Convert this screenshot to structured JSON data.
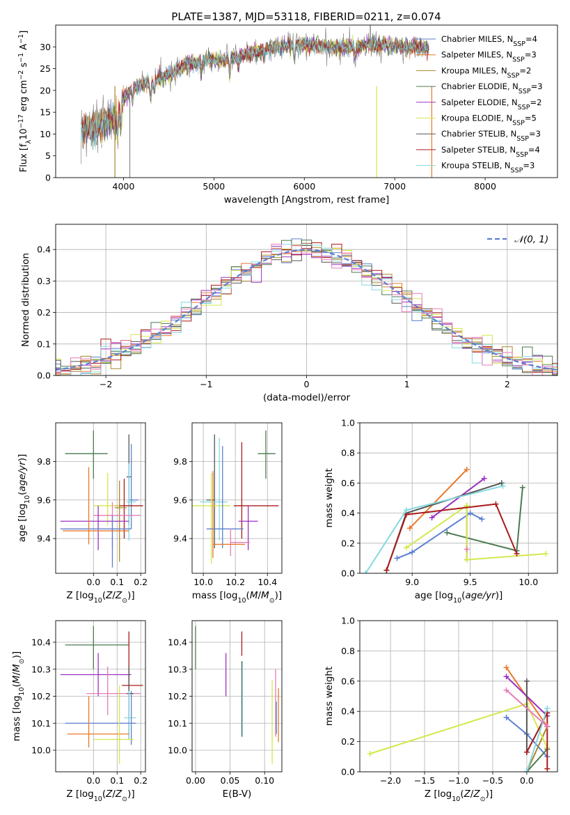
{
  "figure_title": "PLATE=1387, MJD=53118, FIBERID=0211, z=0.074",
  "series_styles": [
    {
      "name": "Chabrier MILES",
      "nssp": "4",
      "color": "#5b7fd1"
    },
    {
      "name": "Salpeter MILES",
      "nssp": "3",
      "color": "#e8782a"
    },
    {
      "name": "Kroupa MILES",
      "nssp": "2",
      "color": "#a8882a"
    },
    {
      "name": "Chabrier ELODIE",
      "nssp": "3",
      "color": "#4a7a50"
    },
    {
      "name": "Salpeter ELODIE",
      "nssp": "2",
      "color": "#9b30c0"
    },
    {
      "name": "Kroupa ELODIE",
      "nssp": "5",
      "color": "#d4e84a"
    },
    {
      "name": "Chabrier STELIB",
      "nssp": "3",
      "color": "#555555"
    },
    {
      "name": "Salpeter STELIB",
      "nssp": "4",
      "color": "#aa1a1a"
    },
    {
      "name": "Kroupa STELIB",
      "nssp": "3",
      "color": "#84d8e0"
    }
  ],
  "extra_colors": {
    "pink": "#e87ab8",
    "observed": "#888888",
    "gaussian": "#5b7fd1"
  },
  "chart_data": [
    {
      "id": "spectrum",
      "type": "line",
      "title": "PLATE=1387, MJD=53118, FIBERID=0211, z=0.074",
      "xlabel": "wavelength [Angstrom, rest frame]",
      "ylabel": "Flux [f_λ 10^-17 erg cm^-2 s^-1 A^-1]",
      "xlim": [
        3250,
        8800
      ],
      "ylim": [
        0,
        35
      ],
      "xticks": [
        4000,
        5000,
        6000,
        7000,
        8000
      ],
      "yticks": [
        0,
        5,
        10,
        15,
        20,
        25,
        30
      ],
      "continuum": {
        "x": [
          3530,
          3700,
          3900,
          4000,
          4100,
          4300,
          4500,
          4700,
          4900,
          5100,
          5300,
          5500,
          5700,
          5900,
          6100,
          6300,
          6500,
          6700,
          6900,
          7100,
          7300,
          7380
        ],
        "y": [
          11,
          11.5,
          14,
          18,
          20.5,
          22,
          23.5,
          26,
          27,
          27,
          28,
          29,
          30,
          30.5,
          30.5,
          30,
          30,
          30.5,
          30.5,
          30,
          30,
          29.5
        ]
      },
      "legend_position": "upper right"
    },
    {
      "id": "residuals",
      "type": "histogram",
      "xlabel": "(data-model)/error",
      "ylabel": "Normed distribution",
      "xlim": [
        -2.5,
        2.5
      ],
      "ylim": [
        0,
        0.48
      ],
      "xticks": [
        -2,
        -1,
        0,
        1,
        2
      ],
      "yticks": [
        0,
        0.1,
        0.2,
        0.3,
        0.4
      ],
      "bin_width": 0.1,
      "model_label": "𝒩(0, 1)",
      "model": {
        "mean": 0,
        "sigma": 1
      },
      "grid": true,
      "legend_position": "upper right"
    },
    {
      "id": "age_vs_Z",
      "type": "errorbar",
      "xlabel": "Z [log10(Z/Z☉)]",
      "ylabel": "age [log10(age/yr)]",
      "xlim": [
        -0.16,
        0.22
      ],
      "ylim": [
        9.22,
        10.0
      ],
      "xticks": [
        0.0,
        0.1,
        0.2
      ],
      "yticks": [
        9.4,
        9.6,
        9.8
      ],
      "grid": true,
      "points": [
        {
          "c": "#4a7a50",
          "x": 0.0,
          "y": 9.84,
          "xe": [
            0.12,
            0.06
          ],
          "ye": [
            0.13,
            0.12
          ]
        },
        {
          "c": "#555555",
          "x": 0.15,
          "y": 9.72,
          "xe": [
            0.01,
            0.01
          ],
          "ye": [
            0.25,
            0.22
          ]
        },
        {
          "c": "#5b7fd1",
          "x": 0.16,
          "y": 9.6,
          "xe": [
            0.01,
            0.03
          ],
          "ye": [
            0.15,
            0.29
          ]
        },
        {
          "c": "#84d8e0",
          "x": 0.15,
          "y": 9.59,
          "xe": [
            0.01,
            0.03
          ],
          "ye": [
            0.2,
            0.2
          ]
        },
        {
          "c": "#aa1a1a",
          "x": 0.13,
          "y": 9.57,
          "xe": [
            0.04,
            0.08
          ],
          "ye": [
            0.17,
            0.14
          ]
        },
        {
          "c": "#d4e84a",
          "x": 0.06,
          "y": 9.57,
          "xe": [
            0.06,
            0.05
          ],
          "ye": [
            0.1,
            0.17
          ]
        },
        {
          "c": "#a8882a",
          "x": 0.11,
          "y": 9.56,
          "xe": [
            0.02,
            0.03
          ],
          "ye": [
            0.28,
            0.14
          ]
        },
        {
          "c": "#e87ab8",
          "x": 0.08,
          "y": 9.52,
          "xe": [
            0.08,
            0.12
          ],
          "ye": [
            0.17,
            0.07
          ]
        },
        {
          "c": "#9b30c0",
          "x": 0.02,
          "y": 9.49,
          "xe": [
            0.16,
            0.13
          ],
          "ye": [
            0.15,
            0.08
          ]
        },
        {
          "c": "#5b7fd1",
          "x": 0.08,
          "y": 9.45,
          "xe": [
            0.22,
            0.08
          ],
          "ye": [
            0.2,
            0.07
          ]
        },
        {
          "c": "#e8782a",
          "x": -0.02,
          "y": 9.44,
          "xe": [
            0.11,
            0.17
          ],
          "ye": [
            0.07,
            0.33
          ]
        }
      ]
    },
    {
      "id": "age_vs_mass",
      "type": "errorbar",
      "xlabel": "mass [log10(M/M☉)]",
      "ylabel": "",
      "xlim": [
        9.93,
        10.49
      ],
      "ylim": [
        9.22,
        10.0
      ],
      "xticks": [
        10.0,
        10.2,
        10.4
      ],
      "yticks": [
        9.4,
        9.6,
        9.8
      ],
      "grid": true,
      "points": [
        {
          "c": "#4a7a50",
          "x": 10.39,
          "y": 9.84,
          "xe": [
            0.05,
            0.06
          ],
          "ye": [
            0.13,
            0.12
          ]
        },
        {
          "c": "#555555",
          "x": 10.07,
          "y": 9.6,
          "xe": [
            0.05,
            0.0
          ],
          "ye": [
            0.25,
            0.34
          ]
        },
        {
          "c": "#84d8e0",
          "x": 10.1,
          "y": 9.59,
          "xe": [
            0.12,
            0.05
          ],
          "ye": [
            0.2,
            0.33
          ]
        },
        {
          "c": "#aa1a1a",
          "x": 10.24,
          "y": 9.57,
          "xe": [
            0.05,
            0.23
          ],
          "ye": [
            0.17,
            0.33
          ]
        },
        {
          "c": "#d4e84a",
          "x": 10.05,
          "y": 9.57,
          "xe": [
            0.12,
            0.12
          ],
          "ye": [
            0.3,
            0.17
          ]
        },
        {
          "c": "#9b30c0",
          "x": 10.28,
          "y": 9.49,
          "xe": [
            0.06,
            0.06
          ],
          "ye": [
            0.15,
            0.08
          ]
        },
        {
          "c": "#5b7fd1",
          "x": 10.12,
          "y": 9.45,
          "xe": [
            0.1,
            0.13
          ],
          "ye": [
            0.1,
            0.43
          ]
        },
        {
          "c": "#e87ab8",
          "x": 10.17,
          "y": 9.38,
          "xe": [
            0.0,
            0.12
          ],
          "ye": [
            0.07,
            0.07
          ]
        },
        {
          "c": "#e8782a",
          "x": 10.06,
          "y": 9.37,
          "xe": [
            0.0,
            0.2
          ],
          "ye": [
            0.07,
            0.38
          ]
        }
      ]
    },
    {
      "id": "weight_vs_age",
      "type": "line",
      "xlabel": "age [log10(age/yr)]",
      "ylabel": "mass weight",
      "xlim": [
        8.55,
        10.25
      ],
      "ylim": [
        0,
        1
      ],
      "xticks": [
        9.0,
        9.5,
        10.0
      ],
      "yticks": [
        0,
        0.2,
        0.4,
        0.6,
        0.8,
        1.0
      ],
      "grid": true,
      "series": [
        {
          "c": "#5b7fd1",
          "x": [
            8.87,
            9.0,
            9.5,
            9.6
          ],
          "y": [
            0.1,
            0.14,
            0.4,
            0.36
          ]
        },
        {
          "c": "#e8782a",
          "x": [
            8.98,
            9.47
          ],
          "y": [
            0.3,
            0.69
          ]
        },
        {
          "c": "#a8882a",
          "x": [
            9.47,
            9.47
          ],
          "y": [
            0.09,
            0.45
          ]
        },
        {
          "c": "#4a7a50",
          "x": [
            9.3,
            9.9,
            9.95
          ],
          "y": [
            0.27,
            0.15,
            0.57
          ]
        },
        {
          "c": "#9b30c0",
          "x": [
            9.17,
            9.62
          ],
          "y": [
            0.37,
            0.63
          ]
        },
        {
          "c": "#d4e84a",
          "x": [
            8.95,
            9.47,
            9.47,
            10.15
          ],
          "y": [
            0.17,
            0.45,
            0.09,
            0.13
          ]
        },
        {
          "c": "#555555",
          "x": [
            8.78,
            8.95,
            9.77
          ],
          "y": [
            0.02,
            0.4,
            0.6
          ]
        },
        {
          "c": "#aa1a1a",
          "x": [
            8.78,
            8.95,
            9.72,
            9.9
          ],
          "y": [
            0.02,
            0.39,
            0.46,
            0.13
          ]
        },
        {
          "c": "#84d8e0",
          "x": [
            8.6,
            8.95,
            9.78
          ],
          "y": [
            0.0,
            0.42,
            0.58
          ]
        },
        {
          "c": "#e87ab8",
          "x": [
            9.47
          ],
          "y": [
            0.16
          ]
        }
      ]
    },
    {
      "id": "mass_vs_Z",
      "type": "errorbar",
      "xlabel": "Z [log10(Z/Z☉)]",
      "ylabel": "mass [log10(M/M☉)]",
      "xlim": [
        -0.16,
        0.22
      ],
      "ylim": [
        9.92,
        10.48
      ],
      "xticks": [
        0.0,
        0.1,
        0.2
      ],
      "yticks": [
        10.0,
        10.1,
        10.2,
        10.3,
        10.4
      ],
      "grid": true,
      "points": [
        {
          "c": "#4a7a50",
          "x": 0.0,
          "y": 10.39,
          "xe": [
            0.12,
            0.15
          ],
          "ye": [
            0.09,
            0.07
          ]
        },
        {
          "c": "#aa1a1a",
          "x": 0.15,
          "y": 10.24,
          "xe": [
            0.03,
            0.06
          ],
          "ye": [
            0.2,
            0.2
          ]
        },
        {
          "c": "#9b30c0",
          "x": 0.02,
          "y": 10.28,
          "xe": [
            0.16,
            0.14
          ],
          "ye": [
            0.08,
            0.08
          ]
        },
        {
          "c": "#e87ab8",
          "x": 0.06,
          "y": 10.21,
          "xe": [
            0.09,
            0.14
          ],
          "ye": [
            0.08,
            0.1
          ]
        },
        {
          "c": "#555555",
          "x": 0.15,
          "y": 10.21,
          "xe": [
            0.01,
            0.02
          ],
          "ye": [
            0.15,
            0.1
          ]
        },
        {
          "c": "#84d8e0",
          "x": 0.15,
          "y": 10.12,
          "xe": [
            0.02,
            0.03
          ],
          "ye": [
            0.08,
            0.1
          ]
        },
        {
          "c": "#5b7fd1",
          "x": 0.16,
          "y": 10.1,
          "xe": [
            0.28,
            0.02
          ],
          "ye": [
            0.08,
            0.12
          ]
        },
        {
          "c": "#e8782a",
          "x": -0.02,
          "y": 10.06,
          "xe": [
            0.09,
            0.17
          ],
          "ye": [
            0.05,
            0.14
          ]
        },
        {
          "c": "#d4e84a",
          "x": 0.11,
          "y": 10.04,
          "xe": [
            0.11,
            0.06
          ],
          "ye": [
            0.09,
            0.2
          ]
        }
      ]
    },
    {
      "id": "mass_vs_EBV",
      "type": "errorbar",
      "xlabel": "E(B-V)",
      "ylabel": "",
      "xlim": [
        -0.005,
        0.125
      ],
      "ylim": [
        9.92,
        10.48
      ],
      "xticks": [
        0.0,
        0.05,
        0.1
      ],
      "yticks": [
        10.0,
        10.1,
        10.2,
        10.3,
        10.4
      ],
      "grid": true,
      "points": [
        {
          "c": "#4a7a50",
          "x": 0.0,
          "y": 10.38,
          "xe": [
            0,
            0
          ],
          "ye": [
            0.08,
            0.08
          ]
        },
        {
          "c": "#aa1a1a",
          "x": 0.067,
          "y": 10.4,
          "xe": [
            0,
            0
          ],
          "ye": [
            0.05,
            0.04
          ]
        },
        {
          "c": "#9b30c0",
          "x": 0.044,
          "y": 10.28,
          "xe": [
            0,
            0
          ],
          "ye": [
            0.08,
            0.08
          ]
        },
        {
          "c": "#555555",
          "x": 0.067,
          "y": 10.19,
          "xe": [
            0,
            0
          ],
          "ye": [
            0.14,
            0.14
          ]
        },
        {
          "c": "#84d8e0",
          "x": 0.068,
          "y": 10.19,
          "xe": [
            0,
            0
          ],
          "ye": [
            0.14,
            0.14
          ]
        },
        {
          "c": "#e87ab8",
          "x": 0.116,
          "y": 10.17,
          "xe": [
            0,
            0
          ],
          "ye": [
            0.12,
            0.13
          ]
        },
        {
          "c": "#5b7fd1",
          "x": 0.117,
          "y": 10.12,
          "xe": [
            0,
            0
          ],
          "ye": [
            0.06,
            0.06
          ]
        },
        {
          "c": "#e8782a",
          "x": 0.12,
          "y": 10.13,
          "xe": [
            0,
            0
          ],
          "ye": [
            0.1,
            0.1
          ]
        },
        {
          "c": "#d4e84a",
          "x": 0.111,
          "y": 10.11,
          "xe": [
            0,
            0
          ],
          "ye": [
            0.16,
            0.15
          ]
        }
      ]
    },
    {
      "id": "weight_vs_Z",
      "type": "line",
      "xlabel": "Z [log10(Z/Z☉)]",
      "ylabel": "mass weight",
      "xlim": [
        -2.45,
        0.45
      ],
      "ylim": [
        0,
        1
      ],
      "xticks": [
        -2.0,
        -1.5,
        -1.0,
        -0.5,
        0.0
      ],
      "yticks": [
        0,
        0.2,
        0.4,
        0.6,
        0.8,
        1.0
      ],
      "grid": true,
      "series": [
        {
          "c": "#5b7fd1",
          "x": [
            -0.3,
            0.0,
            0.3
          ],
          "y": [
            0.36,
            0.25,
            0.1
          ]
        },
        {
          "c": "#e8782a",
          "x": [
            -0.3,
            0.3
          ],
          "y": [
            0.69,
            0.3
          ]
        },
        {
          "c": "#a8882a",
          "x": [
            0.0,
            0.3
          ],
          "y": [
            0.0,
            0.3
          ]
        },
        {
          "c": "#4a7a50",
          "x": [
            0.0,
            0.3
          ],
          "y": [
            0.0,
            0.15
          ]
        },
        {
          "c": "#9b30c0",
          "x": [
            -0.3,
            0.3
          ],
          "y": [
            0.63,
            0.37
          ]
        },
        {
          "c": "#d4e84a",
          "x": [
            -2.3,
            0.0,
            0.3
          ],
          "y": [
            0.12,
            0.45,
            0.16
          ]
        },
        {
          "c": "#555555",
          "x": [
            0.0,
            0.0,
            0.3
          ],
          "y": [
            0.6,
            0.13,
            0.39
          ]
        },
        {
          "c": "#aa1a1a",
          "x": [
            0.0,
            0.3,
            0.3
          ],
          "y": [
            0.13,
            0.39,
            0.02
          ]
        },
        {
          "c": "#84d8e0",
          "x": [
            0.0,
            0.3
          ],
          "y": [
            0.0,
            0.42
          ]
        },
        {
          "c": "#e87ab8",
          "x": [
            -0.3,
            0.3
          ],
          "y": [
            0.54,
            0.3
          ]
        }
      ]
    }
  ]
}
